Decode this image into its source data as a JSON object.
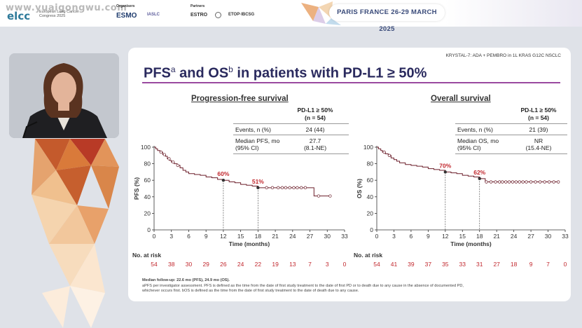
{
  "header": {
    "watermark": "www.yuaigongwu.com",
    "congress_logo": "elcc",
    "congress_sub": "European Lung Cancer Congress 2025",
    "organisers_label": "Organisers",
    "organiser_1": "ESMO",
    "organiser_2": "IASLC",
    "partners_label": "Partners",
    "partner_1": "ESTRO",
    "partner_2": "ETOP·IBCSG",
    "event": "PARIS FRANCE 26-29 MARCH 2025"
  },
  "slide": {
    "study_tag": "KRYSTAL-7: ADA + PEMBRO in 1L KRAS G12C NSCLC",
    "title_main": "PFS",
    "title_sup_a": "a",
    "title_mid": " and OS",
    "title_sup_b": "b",
    "title_end": " in patients with PD-L1 ≥ 50%",
    "pfs": {
      "section_title": "Progression-free survival",
      "group_label": "PD-L1 ≥ 50%",
      "group_n": "(n = 54)",
      "events_label": "Events, n (%)",
      "events_value": "24 (44)",
      "median_label_1": "Median PFS, mo",
      "median_label_2": "(95% CI)",
      "median_value_1": "27.7",
      "median_value_2": "(8.1-NE)",
      "ylabel": "PFS (%)",
      "xlabel": "Time (months)",
      "risk_title": "No. at risk"
    },
    "os": {
      "section_title": "Overall survival",
      "group_label": "PD-L1 ≥ 50%",
      "group_n": "(n = 54)",
      "events_label": "Events, n (%)",
      "events_value": "21 (39)",
      "median_label_1": "Median OS, mo",
      "median_label_2": "(95% CI)",
      "median_value_1": "NR",
      "median_value_2": "(15.4-NE)",
      "ylabel": "OS (%)",
      "xlabel": "Time (months)",
      "risk_title": "No. at risk"
    },
    "footnote_1": "Median follow-up: 22.6 mo (PFS), 24.9 mo (OS).",
    "footnote_2": "aPFS per investigator assessment. PFS is defined as the time from the date of first study treatment to the date of first PD or to death due to any cause in the absence of documented PD,",
    "footnote_3": "whichever occurs first. bOS is defined as the time from the date of first study treatment to the date of death due to any cause."
  },
  "colors": {
    "curve": "#6b1e2a",
    "title": "#2a2a5e",
    "rule": "#9a4aa0",
    "risk": "#c1272d"
  },
  "chart_data": [
    {
      "type": "line",
      "name": "PFS",
      "xlabel": "Time (months)",
      "ylabel": "PFS (%)",
      "xlim": [
        0,
        33
      ],
      "ylim": [
        0,
        100
      ],
      "xticks": [
        0,
        3,
        6,
        9,
        12,
        15,
        18,
        21,
        24,
        27,
        30,
        33
      ],
      "yticks": [
        0,
        20,
        40,
        60,
        80,
        100
      ],
      "x": [
        0,
        0.3,
        0.6,
        1,
        1.5,
        2,
        2.3,
        2.7,
        3,
        3.5,
        4,
        4.5,
        5,
        5.5,
        6,
        7,
        8,
        9,
        10,
        11,
        12,
        13,
        14,
        15,
        16,
        17,
        18,
        19,
        20,
        21,
        22,
        23,
        24,
        25,
        26,
        27,
        27.7,
        28,
        29,
        30,
        30.5
      ],
      "y": [
        100,
        98,
        96,
        94,
        91,
        89,
        86,
        84,
        82,
        80,
        78,
        75,
        72,
        70,
        68,
        67,
        66,
        64,
        63,
        61,
        60,
        58,
        57,
        55,
        54,
        53,
        51,
        51,
        51,
        51,
        51,
        51,
        51,
        51,
        51,
        51,
        41,
        41,
        41,
        41,
        41
      ],
      "censor_x": [
        1.2,
        1.8,
        2.6,
        3.3,
        4.1,
        19.5,
        20.5,
        21.5,
        22.2,
        22.8,
        23.5,
        24.2,
        24.8,
        25.5,
        26.2,
        28.5,
        30.5
      ],
      "annotations": [
        {
          "x": 12,
          "y": 60,
          "label": "60%"
        },
        {
          "x": 18,
          "y": 51,
          "label": "51%"
        }
      ],
      "risk_x": [
        0,
        3,
        6,
        9,
        12,
        15,
        18,
        21,
        24,
        27,
        30,
        33
      ],
      "risk": [
        54,
        38,
        30,
        29,
        26,
        24,
        22,
        19,
        13,
        7,
        3,
        0
      ]
    },
    {
      "type": "line",
      "name": "OS",
      "xlabel": "Time (months)",
      "ylabel": "OS (%)",
      "xlim": [
        0,
        33
      ],
      "ylim": [
        0,
        100
      ],
      "xticks": [
        0,
        3,
        6,
        9,
        12,
        15,
        18,
        21,
        24,
        27,
        30,
        33
      ],
      "yticks": [
        0,
        20,
        40,
        60,
        80,
        100
      ],
      "x": [
        0,
        0.3,
        0.7,
        1,
        1.5,
        2,
        2.5,
        3,
        3.5,
        4,
        5,
        6,
        7,
        8,
        9,
        10,
        11,
        12,
        13,
        14,
        15,
        16,
        17,
        18,
        19,
        20,
        21,
        22,
        23,
        24,
        25,
        26,
        27,
        28,
        29,
        30,
        31,
        32
      ],
      "y": [
        100,
        98,
        96,
        94,
        92,
        90,
        87,
        85,
        83,
        81,
        79,
        78,
        77,
        76,
        74,
        73,
        72,
        70,
        69,
        68,
        66,
        65,
        64,
        62,
        58,
        58,
        58,
        58,
        58,
        58,
        58,
        58,
        58,
        58,
        58,
        58,
        58,
        58
      ],
      "censor_x": [
        1.3,
        2.2,
        19.2,
        20,
        20.8,
        21.5,
        22,
        22.6,
        23.2,
        23.8,
        24.4,
        25,
        25.6,
        26.2,
        27,
        27.8,
        28.6,
        29.4,
        30.2,
        31,
        31.8
      ],
      "annotations": [
        {
          "x": 12,
          "y": 70,
          "label": "70%"
        },
        {
          "x": 18,
          "y": 62,
          "label": "62%"
        }
      ],
      "risk_x": [
        0,
        3,
        6,
        9,
        12,
        15,
        18,
        21,
        24,
        27,
        30,
        33
      ],
      "risk": [
        54,
        41,
        39,
        37,
        35,
        33,
        31,
        27,
        18,
        9,
        7,
        0
      ]
    }
  ]
}
